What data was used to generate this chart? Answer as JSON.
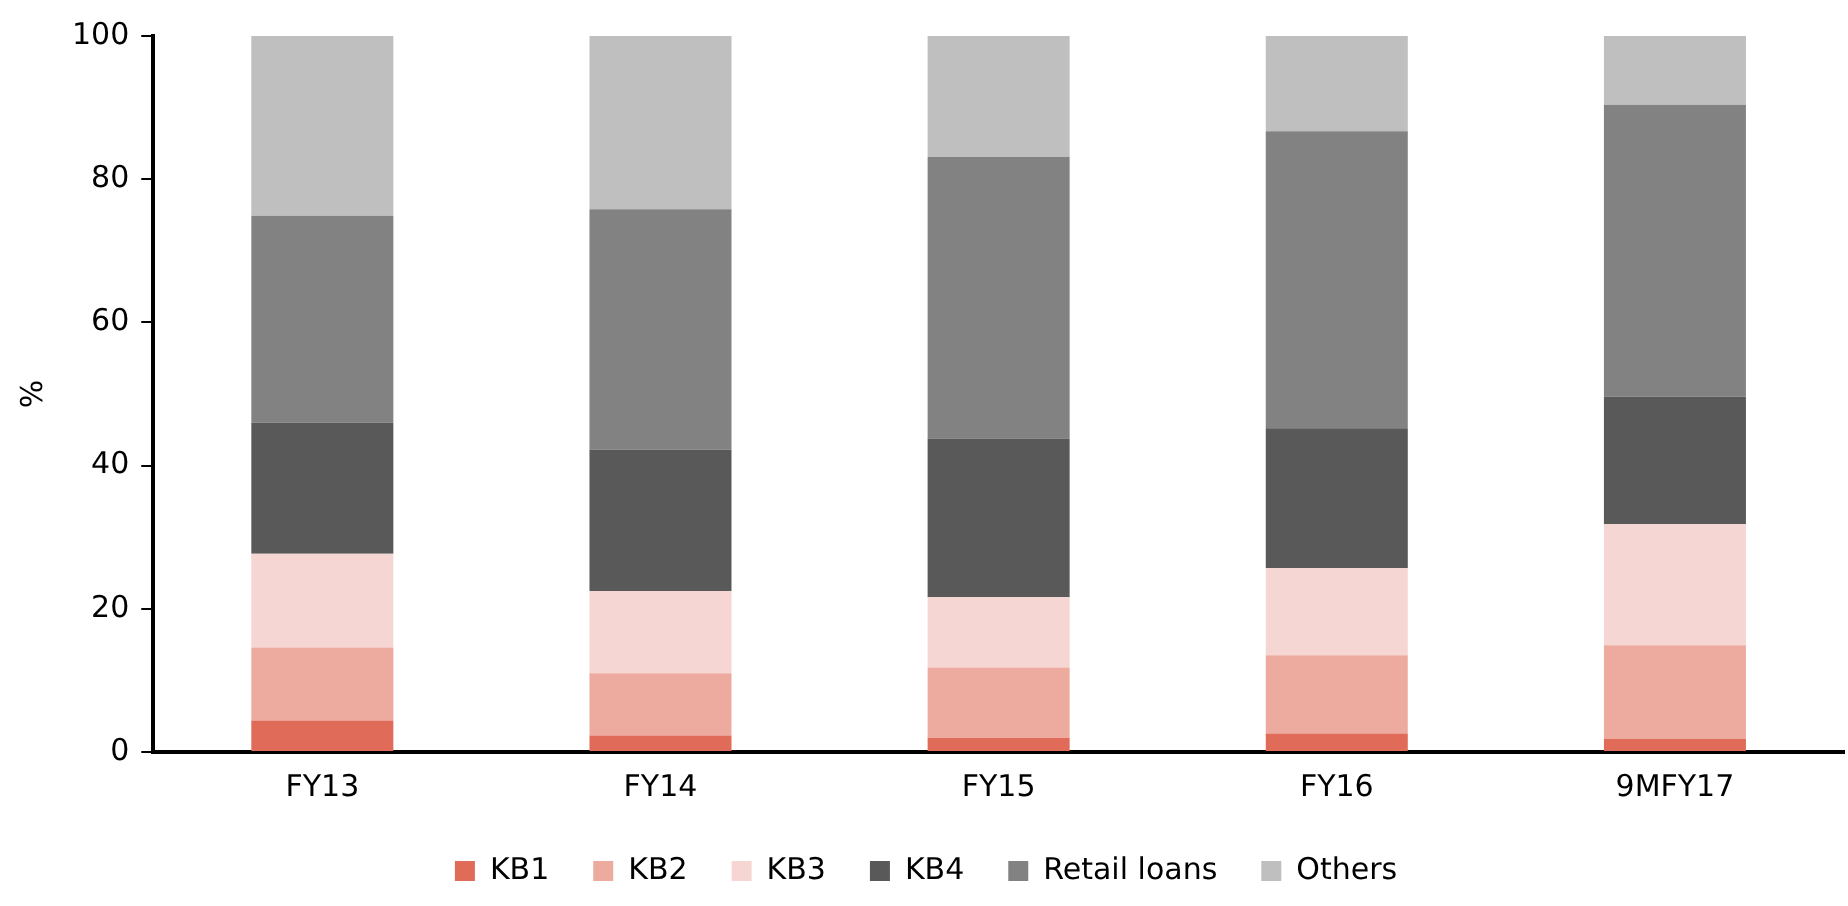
{
  "chart_data": {
    "type": "bar",
    "stacked": true,
    "ylabel": "%",
    "categories": [
      "FY13",
      "FY14",
      "FY15",
      "FY16",
      "9MFY17"
    ],
    "series": [
      {
        "name": "KB1",
        "color": "#e06b58",
        "values": [
          4.4,
          2.3,
          2.0,
          2.6,
          1.8
        ]
      },
      {
        "name": "KB2",
        "color": "#edaba0",
        "values": [
          10.2,
          8.7,
          9.8,
          10.9,
          13.1
        ]
      },
      {
        "name": "KB3",
        "color": "#f6d6d2",
        "values": [
          13.1,
          11.5,
          9.8,
          12.2,
          16.9
        ]
      },
      {
        "name": "KB4",
        "color": "#595959",
        "values": [
          18.3,
          19.7,
          22.2,
          19.5,
          17.8
        ]
      },
      {
        "name": "Retail loans",
        "color": "#828282",
        "values": [
          28.9,
          33.6,
          39.3,
          41.5,
          40.8
        ]
      },
      {
        "name": "Others",
        "color": "#bfbfbf",
        "values": [
          25.1,
          24.2,
          16.9,
          13.3,
          9.6
        ]
      }
    ],
    "ylim": [
      0,
      100
    ],
    "yticks": [
      0,
      20,
      40,
      60,
      80,
      100
    ],
    "grid": false,
    "legend": "bottom"
  }
}
